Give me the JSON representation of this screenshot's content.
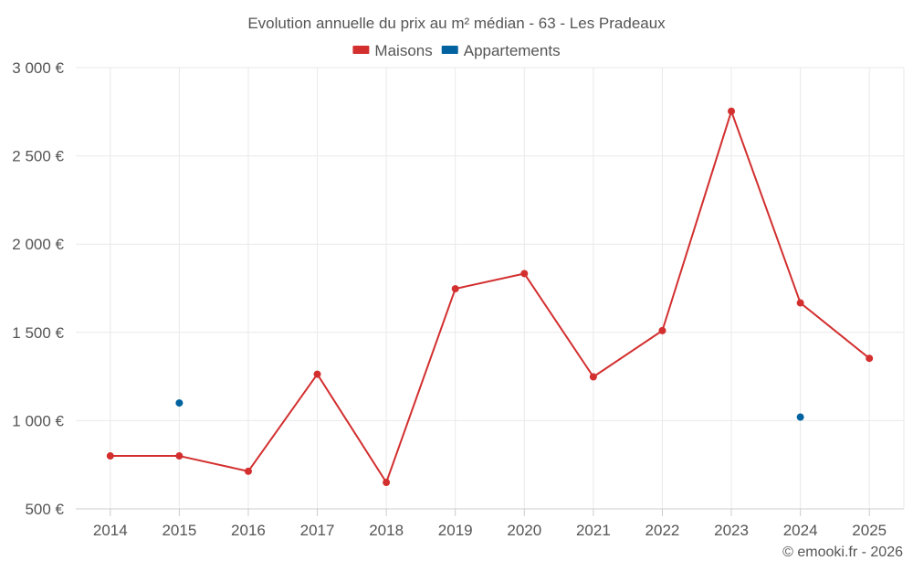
{
  "chart_data": {
    "type": "line",
    "title": "Evolution annuelle du prix au m² médian - 63 - Les Pradeaux",
    "xlabel": "",
    "ylabel": "",
    "categories": [
      "2014",
      "2015",
      "2016",
      "2017",
      "2018",
      "2019",
      "2020",
      "2021",
      "2022",
      "2023",
      "2024",
      "2025"
    ],
    "ylim": [
      500,
      3000
    ],
    "yticks": [
      500,
      1000,
      1500,
      2000,
      2500,
      3000
    ],
    "ytick_labels": [
      "500 €",
      "1 000 €",
      "1 500 €",
      "2 000 €",
      "2 500 €",
      "3 000 €"
    ],
    "grid": true,
    "legend_position": "top-center",
    "series": [
      {
        "name": "Maisons",
        "color": "#d32f2f",
        "show_line": true,
        "values": [
          800,
          800,
          713,
          1263,
          650,
          1747,
          1833,
          1248,
          1510,
          2753,
          1667,
          1353
        ]
      },
      {
        "name": "Appartements",
        "color": "#0063a0",
        "show_line": false,
        "values": [
          null,
          1100,
          null,
          null,
          null,
          null,
          null,
          null,
          null,
          null,
          1020,
          null
        ]
      }
    ]
  },
  "credit": "© emooki.fr - 2026"
}
